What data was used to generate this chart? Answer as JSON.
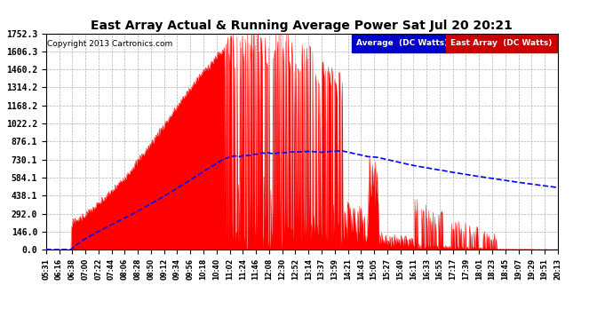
{
  "title": "East Array Actual & Running Average Power Sat Jul 20 20:21",
  "copyright": "Copyright 2013 Cartronics.com",
  "bg_color": "#ffffff",
  "plot_bg_color": "#ffffff",
  "grid_color": "#b0b0b0",
  "y_ticks": [
    0.0,
    146.0,
    292.0,
    438.1,
    584.1,
    730.1,
    876.1,
    1022.2,
    1168.2,
    1314.2,
    1460.2,
    1606.3,
    1752.3
  ],
  "ymax": 1752.3,
  "ymin": 0.0,
  "legend_avg_color": "#0000cc",
  "legend_east_color": "#cc0000",
  "legend_avg_label": "Average  (DC Watts)",
  "legend_east_label": "East Array  (DC Watts)",
  "fill_color": "#ff0000",
  "avg_line_color": "#0000ff",
  "x_labels": [
    "05:31",
    "06:16",
    "06:38",
    "07:00",
    "07:22",
    "07:44",
    "08:06",
    "08:28",
    "08:50",
    "09:12",
    "09:34",
    "09:56",
    "10:18",
    "10:40",
    "11:02",
    "11:24",
    "11:46",
    "12:08",
    "12:30",
    "12:52",
    "13:14",
    "13:37",
    "13:59",
    "14:21",
    "14:43",
    "15:05",
    "15:27",
    "15:49",
    "16:11",
    "16:33",
    "16:55",
    "17:17",
    "17:39",
    "18:01",
    "18:23",
    "18:45",
    "19:07",
    "19:29",
    "19:51",
    "20:13"
  ]
}
